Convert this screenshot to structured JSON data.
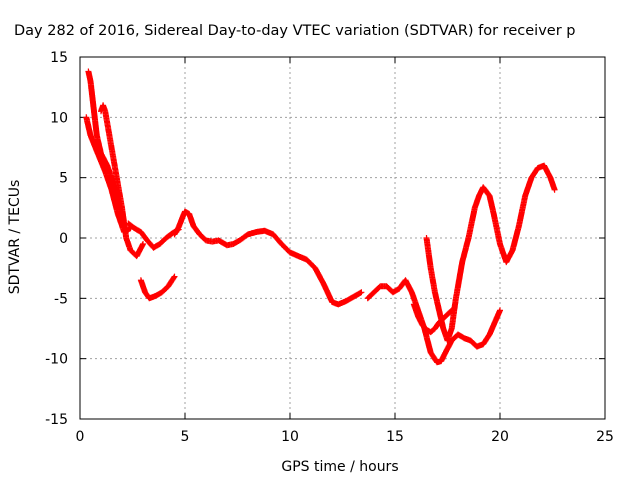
{
  "chart_data": {
    "type": "scatter",
    "title": "Day 282 of 2016, Sidereal Day-to-day VTEC variation (SDTVAR) for receiver p",
    "xlabel": "GPS time / hours",
    "ylabel": "SDTVAR / TECUs",
    "xlim": [
      0,
      25
    ],
    "ylim": [
      -15,
      15
    ],
    "xticks": [
      "0",
      "5",
      "10",
      "15",
      "20",
      "25"
    ],
    "yticks": [
      "15",
      "10",
      "5",
      "0",
      "-5",
      "-10",
      "-15"
    ],
    "xtick_values": [
      0,
      5,
      10,
      15,
      20,
      25
    ],
    "ytick_values": [
      15,
      10,
      5,
      0,
      -5,
      -10,
      -15
    ],
    "grid": true,
    "marker": "+",
    "color": "#ff0000",
    "series": [
      {
        "x": [
          0.3,
          0.5,
          0.8,
          1.2,
          1.5,
          1.8,
          2.1,
          2.4
        ],
        "y": [
          10.0,
          8.5,
          7.2,
          5.5,
          4.0,
          2.0,
          0.5,
          0.8
        ]
      },
      {
        "x": [
          0.4,
          0.5,
          0.6,
          0.7,
          0.8,
          1.0,
          1.3,
          1.6,
          1.9,
          2.1
        ],
        "y": [
          13.8,
          13.0,
          11.5,
          10.0,
          8.5,
          7.0,
          6.0,
          4.5,
          2.5,
          1.0
        ]
      },
      {
        "x": [
          1.0,
          1.1,
          1.2,
          1.4,
          1.6,
          1.8,
          2.0,
          2.2,
          2.4,
          2.7,
          3.0
        ],
        "y": [
          10.5,
          11.0,
          10.5,
          8.5,
          6.5,
          4.5,
          2.5,
          0.0,
          -1.0,
          -1.5,
          -0.5
        ],
        "_note": ""
      },
      {
        "x": [
          2.3,
          2.6,
          2.9,
          3.2,
          3.5,
          3.8,
          4.1,
          4.4,
          4.7
        ],
        "y": [
          1.2,
          0.8,
          0.5,
          -0.2,
          -0.8,
          -0.5,
          0.0,
          0.4,
          0.7
        ]
      },
      {
        "x": [
          4.5,
          4.7,
          4.9,
          5.0,
          5.2,
          5.4,
          5.7,
          6.0,
          6.3,
          6.6,
          7.0,
          7.3,
          7.6,
          8.0,
          8.4,
          8.8,
          9.2,
          9.6,
          10.0,
          10.4,
          10.8,
          11.2,
          11.6,
          12.0,
          12.3,
          12.7,
          13.1,
          13.4
        ],
        "y": [
          0.3,
          0.9,
          1.8,
          2.2,
          2.0,
          1.0,
          0.3,
          -0.2,
          -0.3,
          -0.2,
          -0.6,
          -0.5,
          -0.2,
          0.3,
          0.5,
          0.6,
          0.3,
          -0.5,
          -1.2,
          -1.5,
          -1.8,
          -2.5,
          -3.8,
          -5.3,
          -5.5,
          -5.2,
          -4.8,
          -4.5
        ]
      },
      {
        "x": [
          2.9,
          3.1,
          3.3,
          3.6,
          3.9,
          4.2,
          4.5
        ],
        "y": [
          -3.5,
          -4.5,
          -5.0,
          -4.8,
          -4.5,
          -4.0,
          -3.2
        ]
      },
      {
        "x": [
          13.7,
          14.0,
          14.3,
          14.6,
          14.9,
          15.2,
          15.5,
          15.8,
          16.1,
          16.4,
          16.7,
          17.0,
          17.2,
          17.4,
          17.7,
          18.0,
          18.3,
          18.6,
          18.9,
          19.2,
          19.5,
          19.8,
          20.0
        ],
        "y": [
          -5.0,
          -4.5,
          -4.0,
          -4.0,
          -4.5,
          -4.2,
          -3.5,
          -4.5,
          -6.0,
          -7.5,
          -9.5,
          -10.3,
          -10.2,
          -9.5,
          -8.5,
          -8.0,
          -8.3,
          -8.5,
          -9.0,
          -8.8,
          -8.0,
          -6.8,
          -6.0
        ]
      },
      {
        "x": [
          16.5,
          16.7,
          16.9,
          17.1,
          17.3,
          17.5,
          17.7,
          17.9,
          18.2,
          18.5,
          18.8,
          19.0,
          19.2,
          19.5,
          19.7,
          20.0,
          20.3,
          20.6,
          20.9,
          21.2,
          21.5,
          21.8,
          22.1,
          22.4,
          22.6
        ],
        "y": [
          0.0,
          -2.5,
          -4.5,
          -6.0,
          -7.5,
          -8.5,
          -7.5,
          -5.0,
          -2.0,
          0.0,
          2.5,
          3.5,
          4.2,
          3.5,
          2.0,
          -0.5,
          -2.0,
          -1.0,
          1.0,
          3.5,
          5.0,
          5.8,
          6.0,
          5.0,
          4.0
        ]
      },
      {
        "x": [
          15.9,
          16.1,
          16.3,
          16.5,
          16.7,
          16.9,
          17.1,
          17.4,
          17.7
        ],
        "y": [
          -5.5,
          -6.5,
          -7.2,
          -7.6,
          -7.8,
          -7.5,
          -7.0,
          -6.5,
          -6.0
        ]
      }
    ]
  }
}
